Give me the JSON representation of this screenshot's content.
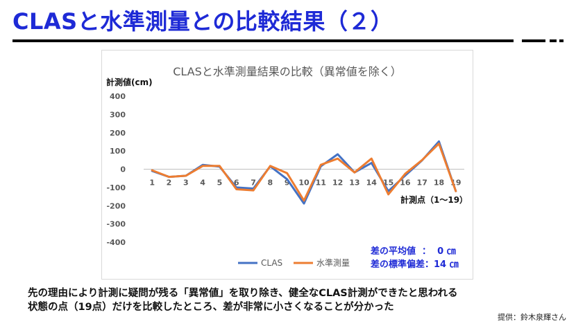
{
  "slide": {
    "title": "CLASと水準測量との比較結果（２）",
    "caption_line1": "先の理由により計測に疑問が残る「異常値」を取り除き、健全なCLAS計測ができたと思われる",
    "caption_line2": "状態の点（19点）だけを比較したところ、差が非常に小さくなることが分かった",
    "credit": "提供：鈴木泉輝さん",
    "stats_line1": "差の平均値  ：  0 ㎝",
    "stats_line2": "差の標準偏差：14 ㎝",
    "colors": {
      "title": "#1e2ad6",
      "clas": "#4472c4",
      "leveling": "#ed7d31"
    }
  },
  "chart_data": {
    "type": "line",
    "title": "CLASと水準測量結果の比較（異常値を除く）",
    "ylabel": "計測値(cm)",
    "xlabel": "計測点（1〜19）",
    "ylim": [
      -400,
      400
    ],
    "yticks": [
      400,
      300,
      200,
      100,
      0,
      -100,
      -200,
      -300,
      -400
    ],
    "categories": [
      "1",
      "2",
      "3",
      "4",
      "5",
      "6",
      "7",
      "8",
      "9",
      "10",
      "11",
      "12",
      "13",
      "14",
      "15",
      "16",
      "17",
      "18",
      "19"
    ],
    "series": [
      {
        "name": "CLAS",
        "color": "#4472c4",
        "values": [
          -10,
          -42,
          -36,
          24,
          14,
          -100,
          -106,
          16,
          -55,
          -188,
          16,
          82,
          -18,
          34,
          -120,
          -35,
          48,
          152,
          -120
        ]
      },
      {
        "name": "水準測量",
        "color": "#ed7d31",
        "values": [
          -6,
          -42,
          -36,
          18,
          18,
          -110,
          -116,
          18,
          -22,
          -172,
          24,
          58,
          -18,
          58,
          -138,
          -25,
          50,
          140,
          -120
        ]
      }
    ],
    "grid": false,
    "legend": "bottom"
  }
}
